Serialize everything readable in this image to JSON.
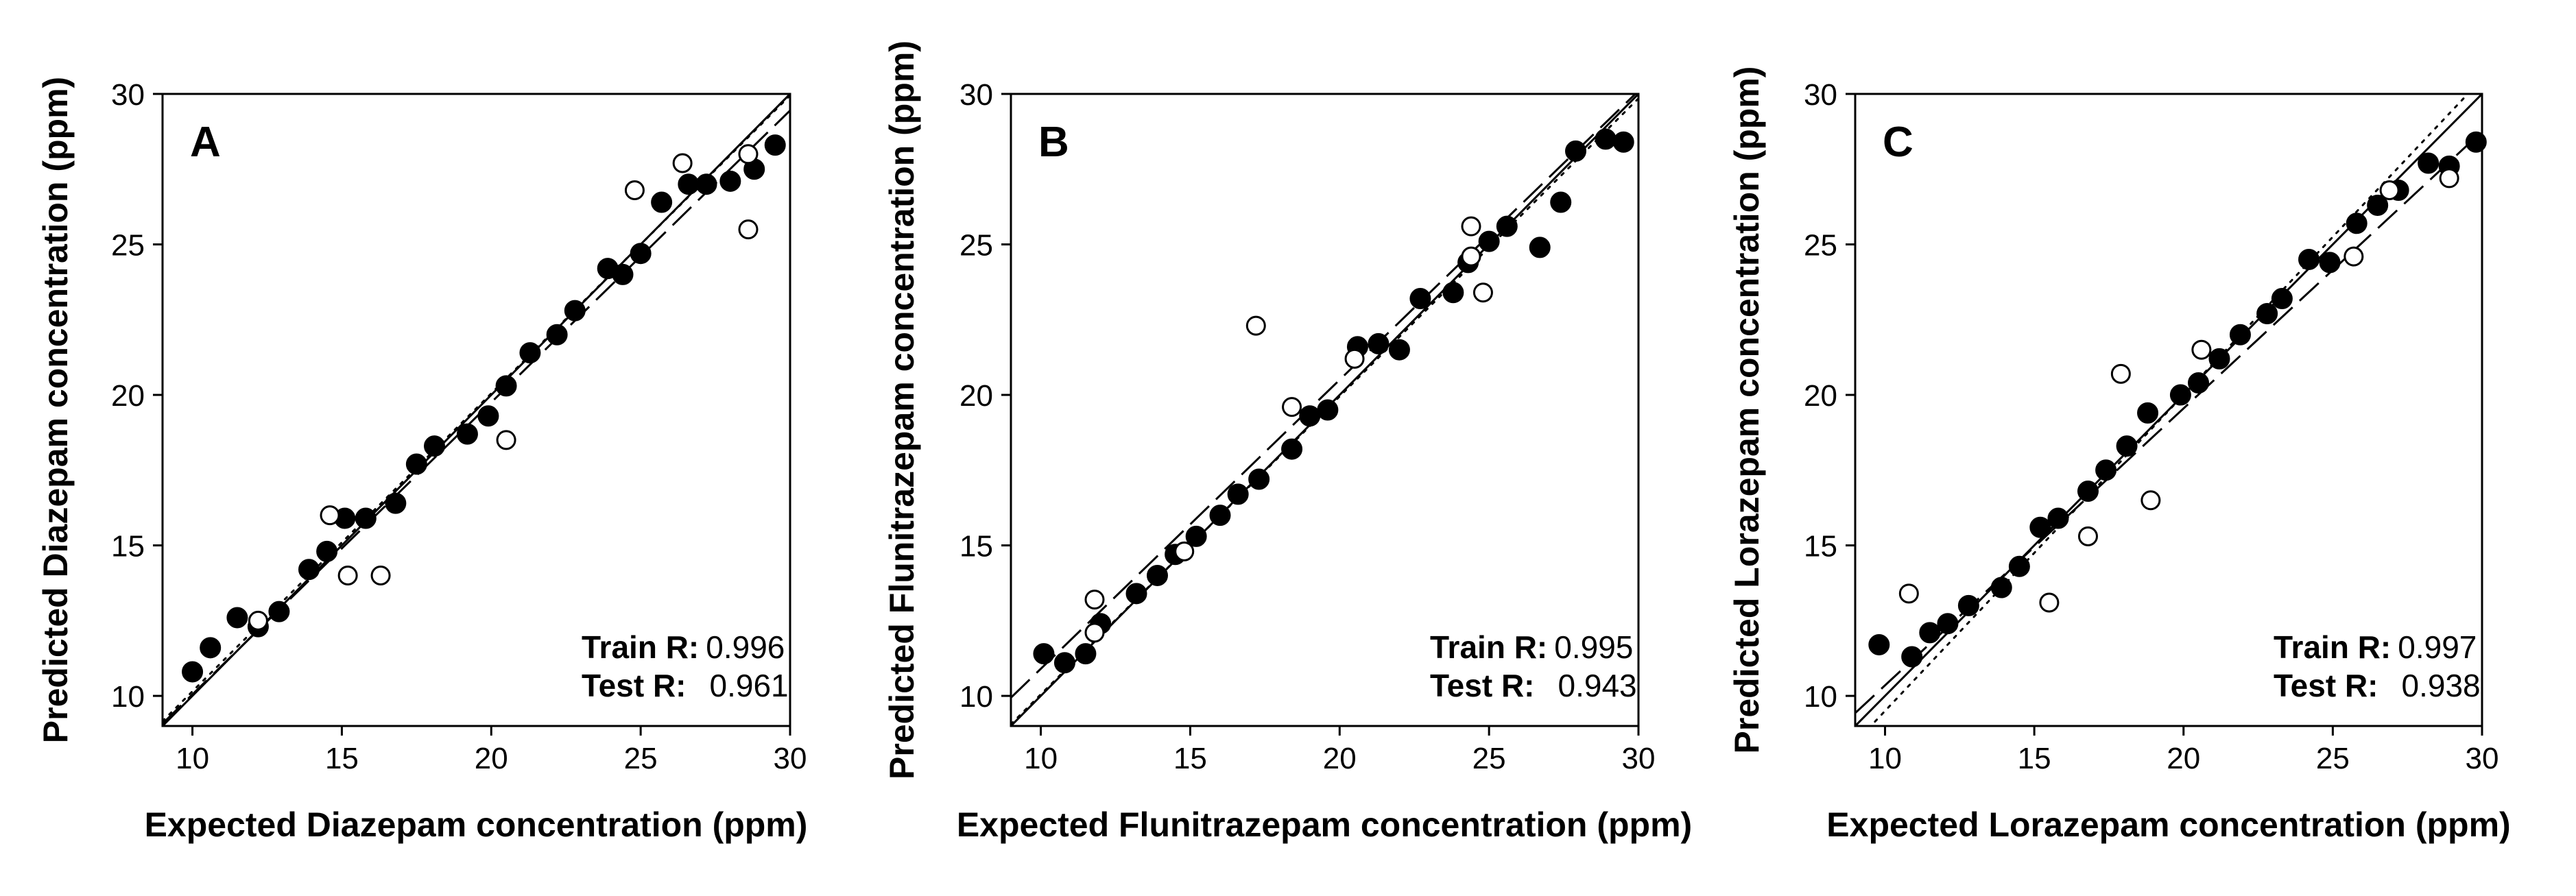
{
  "chart_data": [
    {
      "type": "scatter",
      "panel": "A",
      "xlabel": "Expected Diazepam concentration (ppm)",
      "ylabel": "Predicted Diazepam concentration (ppm)",
      "xlim": [
        9,
        30
      ],
      "ylim": [
        9,
        30
      ],
      "xticks": [
        10,
        15,
        20,
        25,
        30
      ],
      "yticks": [
        10,
        15,
        20,
        25,
        30
      ],
      "stats": [
        {
          "label": "Train R:",
          "value": "0.996"
        },
        {
          "label": "Test R:",
          "value": "0.961"
        }
      ],
      "series": [
        {
          "name": "Train",
          "marker": "filled-circle",
          "points": [
            [
              10.0,
              10.8
            ],
            [
              10.6,
              11.6
            ],
            [
              11.5,
              12.6
            ],
            [
              12.2,
              12.3
            ],
            [
              12.9,
              12.8
            ],
            [
              13.9,
              14.2
            ],
            [
              14.5,
              14.8
            ],
            [
              15.1,
              15.9
            ],
            [
              15.8,
              15.9
            ],
            [
              16.8,
              16.4
            ],
            [
              17.5,
              17.7
            ],
            [
              18.1,
              18.3
            ],
            [
              19.2,
              18.7
            ],
            [
              19.9,
              19.3
            ],
            [
              20.5,
              20.3
            ],
            [
              21.3,
              21.4
            ],
            [
              22.2,
              22.0
            ],
            [
              22.8,
              22.8
            ],
            [
              23.9,
              24.2
            ],
            [
              24.4,
              24.0
            ],
            [
              25.0,
              24.7
            ],
            [
              25.7,
              26.4
            ],
            [
              26.6,
              27.0
            ],
            [
              27.2,
              27.0
            ],
            [
              28.0,
              27.1
            ],
            [
              28.8,
              27.5
            ],
            [
              29.5,
              28.3
            ]
          ]
        },
        {
          "name": "Test",
          "marker": "open-circle",
          "points": [
            [
              12.2,
              12.5
            ],
            [
              14.6,
              16.0
            ],
            [
              15.2,
              14.0
            ],
            [
              16.3,
              14.0
            ],
            [
              20.5,
              18.5
            ],
            [
              24.8,
              26.8
            ],
            [
              26.4,
              27.7
            ],
            [
              28.6,
              28.0
            ],
            [
              28.6,
              25.5
            ]
          ]
        }
      ],
      "lines": [
        {
          "name": "ideal",
          "style": "solid",
          "slope": 1.0,
          "intercept": 0.0
        },
        {
          "name": "train-fit",
          "style": "dotted",
          "slope": 0.99,
          "intercept": 0.25
        },
        {
          "name": "test-fit",
          "style": "dashed",
          "slope": 0.97,
          "intercept": 0.35
        }
      ]
    },
    {
      "type": "scatter",
      "panel": "B",
      "xlabel": "Expected Flunitrazepam concentration (ppm)",
      "ylabel": "Predicted Flunitrazepam concentration (ppm)",
      "xlim": [
        9,
        30
      ],
      "ylim": [
        9,
        30
      ],
      "xticks": [
        10,
        15,
        20,
        25,
        30
      ],
      "yticks": [
        10,
        15,
        20,
        25,
        30
      ],
      "stats": [
        {
          "label": "Train R:",
          "value": "0.995"
        },
        {
          "label": "Test R:",
          "value": "0.943"
        }
      ],
      "series": [
        {
          "name": "Train",
          "marker": "filled-circle",
          "points": [
            [
              10.1,
              11.4
            ],
            [
              10.8,
              11.1
            ],
            [
              11.5,
              11.4
            ],
            [
              12.0,
              12.4
            ],
            [
              13.2,
              13.4
            ],
            [
              13.9,
              14.0
            ],
            [
              14.5,
              14.7
            ],
            [
              15.2,
              15.3
            ],
            [
              16.0,
              16.0
            ],
            [
              16.6,
              16.7
            ],
            [
              17.3,
              17.2
            ],
            [
              18.4,
              18.2
            ],
            [
              19.0,
              19.3
            ],
            [
              19.6,
              19.5
            ],
            [
              20.6,
              21.6
            ],
            [
              21.3,
              21.7
            ],
            [
              22.0,
              21.5
            ],
            [
              22.7,
              23.2
            ],
            [
              23.8,
              23.4
            ],
            [
              24.3,
              24.4
            ],
            [
              25.0,
              25.1
            ],
            [
              25.6,
              25.6
            ],
            [
              26.7,
              24.9
            ],
            [
              27.4,
              26.4
            ],
            [
              27.9,
              28.1
            ],
            [
              28.9,
              28.5
            ],
            [
              29.5,
              28.4
            ]
          ]
        },
        {
          "name": "Test",
          "marker": "open-circle",
          "points": [
            [
              11.8,
              13.2
            ],
            [
              11.8,
              12.1
            ],
            [
              14.8,
              14.8
            ],
            [
              17.2,
              22.3
            ],
            [
              18.4,
              19.6
            ],
            [
              20.5,
              21.2
            ],
            [
              24.4,
              25.6
            ],
            [
              24.4,
              24.6
            ],
            [
              24.8,
              23.4
            ]
          ]
        }
      ],
      "lines": [
        {
          "name": "ideal",
          "style": "solid",
          "slope": 1.0,
          "intercept": 0.0
        },
        {
          "name": "train-fit",
          "style": "dotted",
          "slope": 0.99,
          "intercept": 0.15
        },
        {
          "name": "test-fit",
          "style": "dashed",
          "slope": 0.96,
          "intercept": 1.3
        }
      ]
    },
    {
      "type": "scatter",
      "panel": "C",
      "xlabel": "Expected Lorazepam  concentration (ppm)",
      "ylabel": "Predicted Lorazepam  concentration (ppm)",
      "xlim": [
        9,
        30
      ],
      "ylim": [
        9,
        30
      ],
      "xticks": [
        10,
        15,
        20,
        25,
        30
      ],
      "yticks": [
        10,
        15,
        20,
        25,
        30
      ],
      "stats": [
        {
          "label": "Train R:",
          "value": "0.997"
        },
        {
          "label": "Test R:",
          "value": "0.938"
        }
      ],
      "series": [
        {
          "name": "Train",
          "marker": "filled-circle",
          "points": [
            [
              9.8,
              11.7
            ],
            [
              10.9,
              11.3
            ],
            [
              11.5,
              12.1
            ],
            [
              12.1,
              12.4
            ],
            [
              12.8,
              13.0
            ],
            [
              13.9,
              13.6
            ],
            [
              14.5,
              14.3
            ],
            [
              15.2,
              15.6
            ],
            [
              15.8,
              15.9
            ],
            [
              16.8,
              16.8
            ],
            [
              17.4,
              17.5
            ],
            [
              18.1,
              18.3
            ],
            [
              18.8,
              19.4
            ],
            [
              19.9,
              20.0
            ],
            [
              20.5,
              20.4
            ],
            [
              21.2,
              21.2
            ],
            [
              21.9,
              22.0
            ],
            [
              22.8,
              22.7
            ],
            [
              23.3,
              23.2
            ],
            [
              24.2,
              24.5
            ],
            [
              24.9,
              24.4
            ],
            [
              25.8,
              25.7
            ],
            [
              26.5,
              26.3
            ],
            [
              27.2,
              26.8
            ],
            [
              28.2,
              27.7
            ],
            [
              28.9,
              27.6
            ],
            [
              29.8,
              28.4
            ]
          ]
        },
        {
          "name": "Test",
          "marker": "open-circle",
          "points": [
            [
              10.8,
              13.4
            ],
            [
              15.5,
              13.1
            ],
            [
              16.8,
              15.3
            ],
            [
              17.9,
              20.7
            ],
            [
              18.9,
              16.5
            ],
            [
              20.6,
              21.5
            ],
            [
              25.7,
              24.6
            ],
            [
              26.9,
              26.8
            ],
            [
              28.9,
              27.2
            ]
          ]
        }
      ],
      "lines": [
        {
          "name": "ideal",
          "style": "solid",
          "slope": 1.0,
          "intercept": 0.0
        },
        {
          "name": "train-fit",
          "style": "dotted",
          "slope": 1.05,
          "intercept": -1.0
        },
        {
          "name": "test-fit",
          "style": "dashed",
          "slope": 0.92,
          "intercept": 1.15
        }
      ]
    }
  ]
}
